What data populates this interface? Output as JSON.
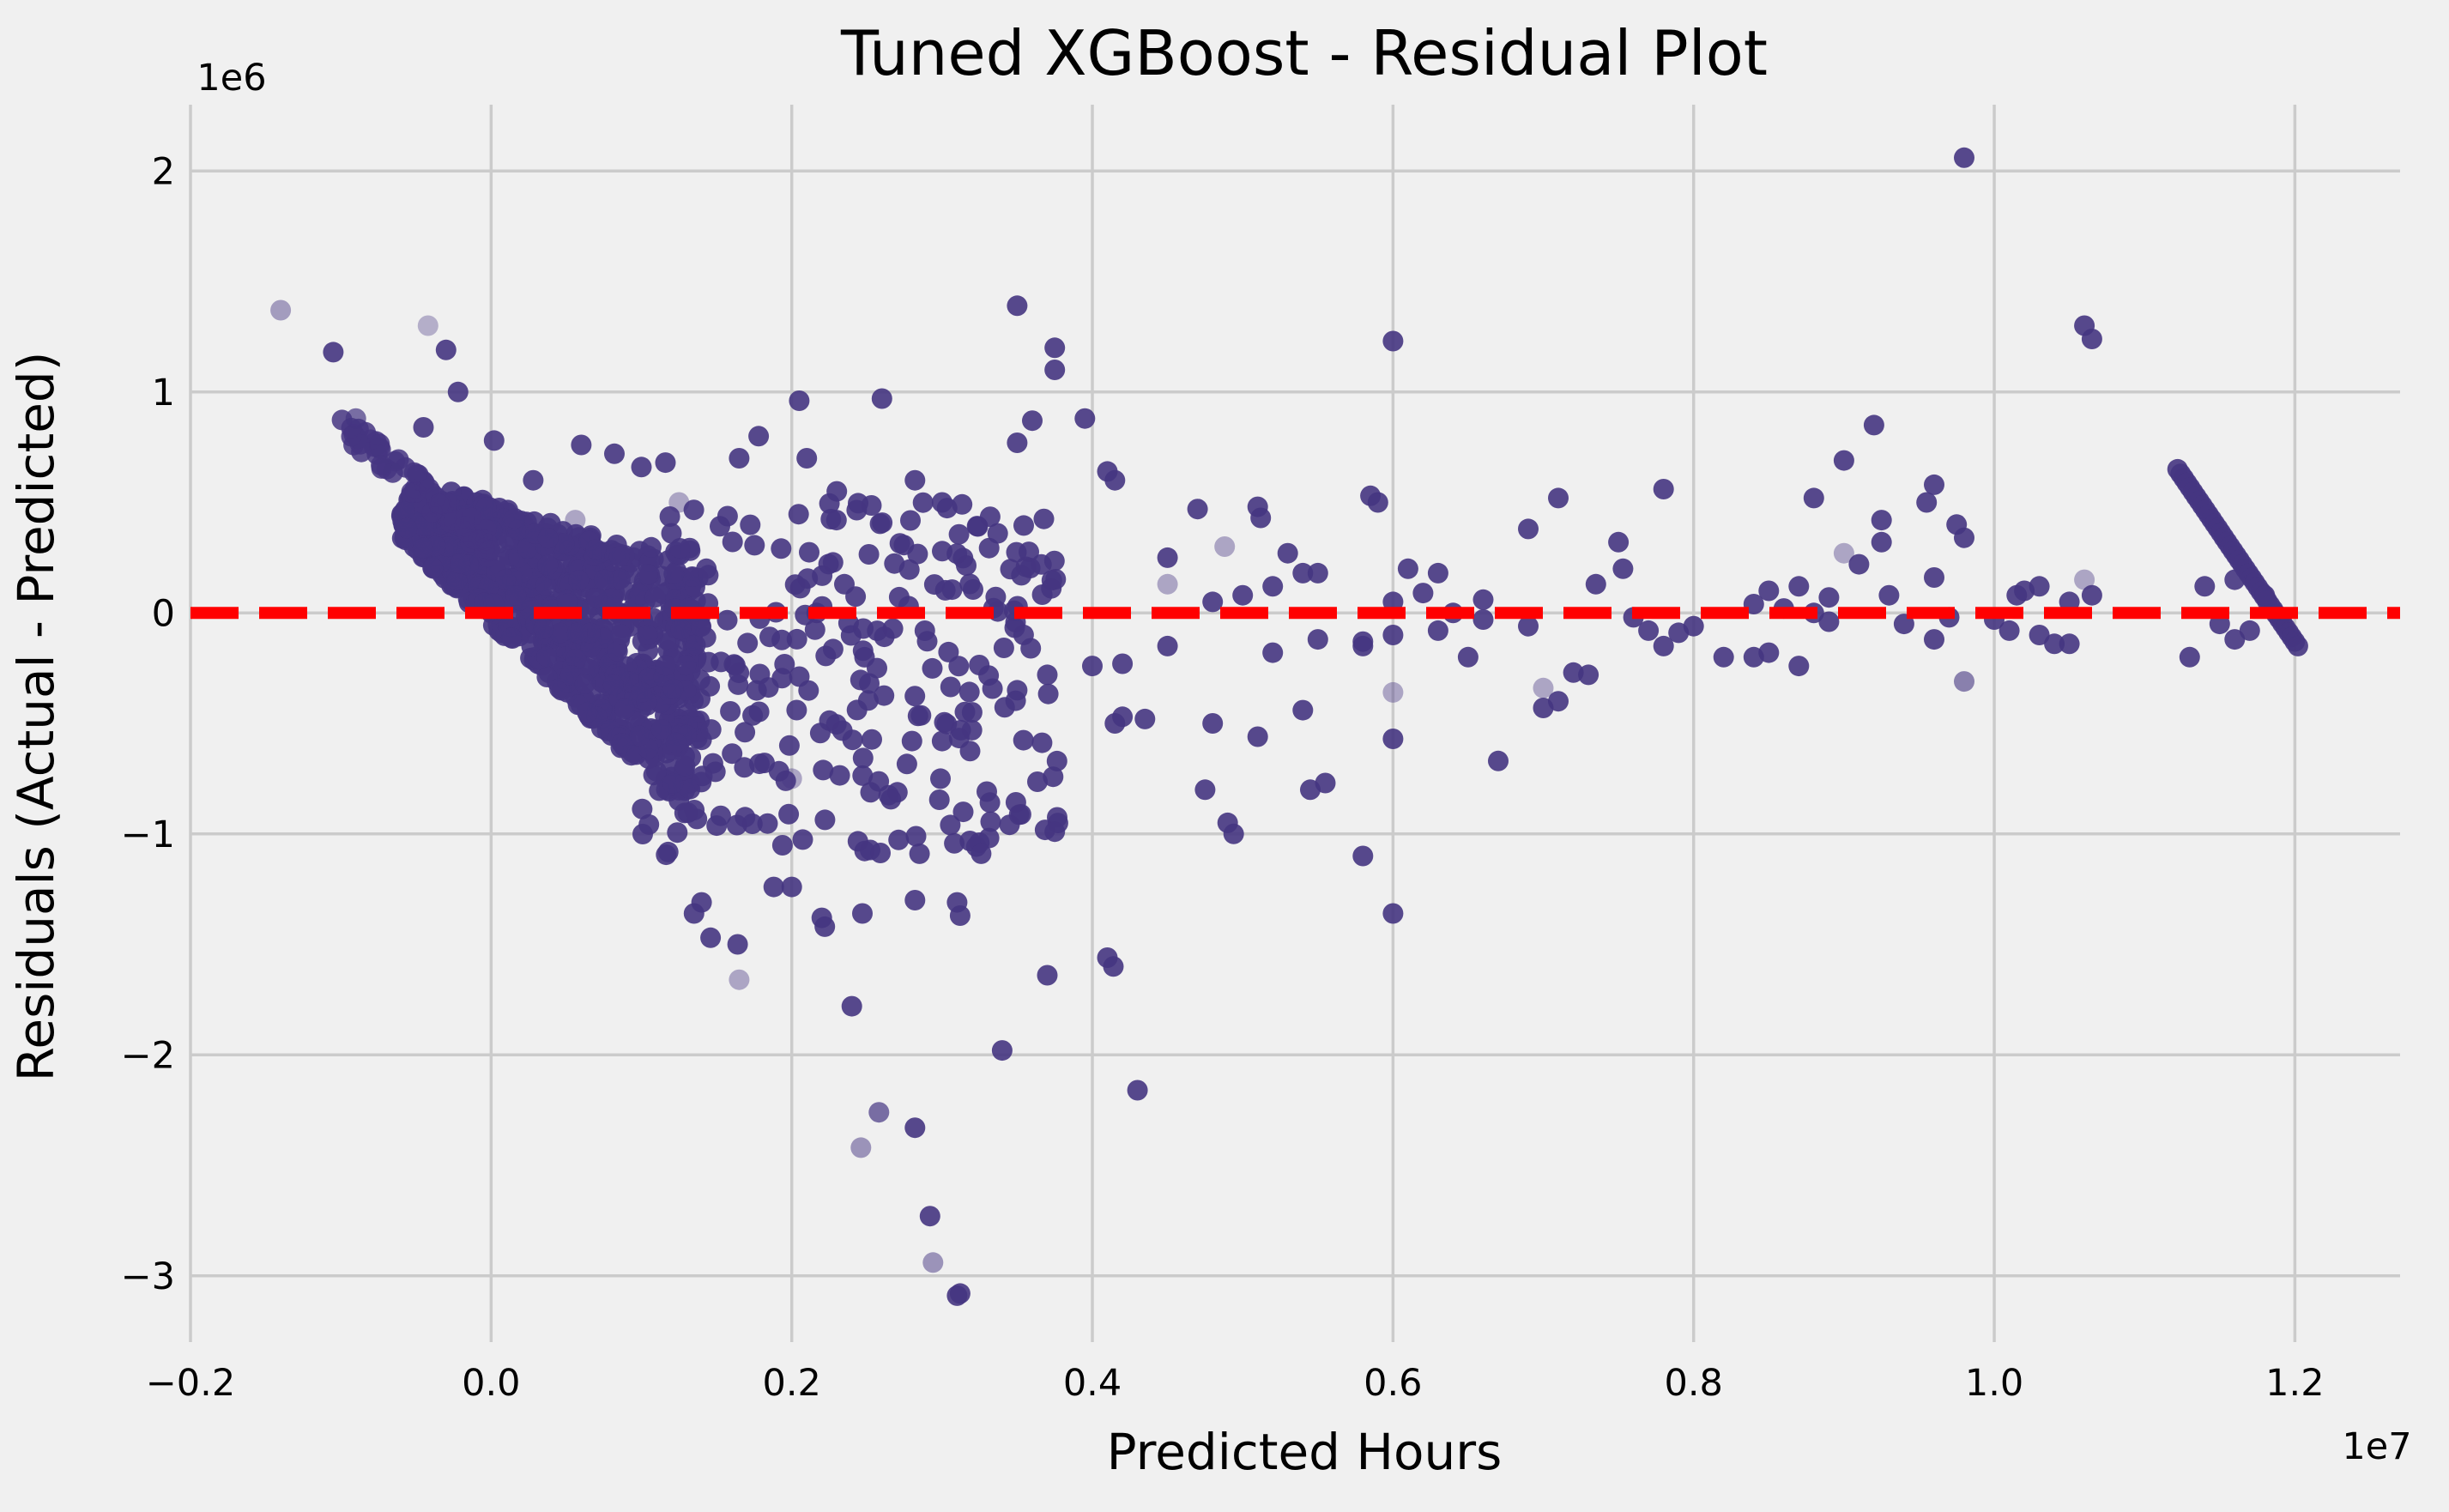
{
  "chart_data": {
    "type": "scatter",
    "title": "Tuned XGBoost - Residual Plot",
    "xlabel": "Predicted Hours",
    "ylabel": "Residuals (Actual - Predicted)",
    "x_offset_label": "1e7",
    "y_offset_label": "1e6",
    "xlim": [
      -0.2,
      1.27
    ],
    "ylim": [
      -3.3,
      2.3
    ],
    "xticks": [
      -0.2,
      0.0,
      0.2,
      0.4,
      0.6,
      0.8,
      1.0,
      1.2
    ],
    "xtick_labels": [
      "−0.2",
      "0.0",
      "0.2",
      "0.4",
      "0.6",
      "0.8",
      "1.0",
      "1.2"
    ],
    "yticks": [
      -3,
      -2,
      -1,
      0,
      1,
      2
    ],
    "ytick_labels": [
      "−3",
      "−2",
      "−1",
      "0",
      "1",
      "2"
    ],
    "grid": true,
    "reference_line": {
      "y": 0,
      "color": "#ff0000",
      "style": "dashed"
    },
    "marker_color": "#453581",
    "series": [
      {
        "points": [
          [
            -0.14,
            1.37,
            0.45
          ],
          [
            -0.105,
            1.18,
            0.9
          ],
          [
            -0.09,
            0.88,
            0.7
          ],
          [
            -0.042,
            1.3,
            0.35
          ],
          [
            -0.03,
            1.19,
            0.9
          ],
          [
            -0.022,
            1.0,
            0.9
          ],
          [
            -0.045,
            0.84,
            0.9
          ],
          [
            0.002,
            0.78,
            0.9
          ],
          [
            0.028,
            0.6,
            0.9
          ],
          [
            0.06,
            0.76,
            0.9
          ],
          [
            0.082,
            0.72,
            0.9
          ],
          [
            0.1,
            0.66,
            0.9
          ],
          [
            0.116,
            0.68,
            0.9
          ],
          [
            0.056,
            0.42,
            0.4
          ],
          [
            0.125,
            0.5,
            0.4
          ],
          [
            0.12,
            0.36,
            0.9
          ],
          [
            0.165,
            0.7,
            0.9
          ],
          [
            0.178,
            0.8,
            0.9
          ],
          [
            0.205,
            0.96,
            0.9
          ],
          [
            0.21,
            0.7,
            0.9
          ],
          [
            0.23,
            0.55,
            0.9
          ],
          [
            0.235,
            0.13,
            0.9
          ],
          [
            0.26,
            0.97,
            0.9
          ],
          [
            0.282,
            0.6,
            0.9
          ],
          [
            0.3,
            0.5,
            0.9
          ],
          [
            0.35,
            1.39,
            0.9
          ],
          [
            0.35,
            0.77,
            0.9
          ],
          [
            0.36,
            0.87,
            0.9
          ],
          [
            0.375,
            1.2,
            0.9
          ],
          [
            0.375,
            1.1,
            0.9
          ],
          [
            0.395,
            0.88,
            0.9
          ],
          [
            0.41,
            0.64,
            0.9
          ],
          [
            0.415,
            0.6,
            0.9
          ],
          [
            0.45,
            0.25,
            0.9
          ],
          [
            0.47,
            0.47,
            0.9
          ],
          [
            0.45,
            0.13,
            0.4
          ],
          [
            0.488,
            0.3,
            0.4
          ],
          [
            0.51,
            0.48,
            0.9
          ],
          [
            0.512,
            0.43,
            0.9
          ],
          [
            0.53,
            0.27,
            0.9
          ],
          [
            0.55,
            0.18,
            0.9
          ],
          [
            0.6,
            1.23,
            0.9
          ],
          [
            0.585,
            0.53,
            0.9
          ],
          [
            0.59,
            0.5,
            0.9
          ],
          [
            0.61,
            0.2,
            0.9
          ],
          [
            0.63,
            0.18,
            0.9
          ],
          [
            0.66,
            0.06,
            0.9
          ],
          [
            0.69,
            0.38,
            0.9
          ],
          [
            0.71,
            0.52,
            0.9
          ],
          [
            0.735,
            0.13,
            0.9
          ],
          [
            0.75,
            0.32,
            0.9
          ],
          [
            0.753,
            0.2,
            0.9
          ],
          [
            0.78,
            0.56,
            0.9
          ],
          [
            0.85,
            0.1,
            0.9
          ],
          [
            0.87,
            0.12,
            0.9
          ],
          [
            0.88,
            0.52,
            0.9
          ],
          [
            0.89,
            0.07,
            0.9
          ],
          [
            0.9,
            0.69,
            0.9
          ],
          [
            0.9,
            0.27,
            0.4
          ],
          [
            0.91,
            0.22,
            0.9
          ],
          [
            0.92,
            0.85,
            0.9
          ],
          [
            0.925,
            0.42,
            0.9
          ],
          [
            0.925,
            0.32,
            0.9
          ],
          [
            0.93,
            0.08,
            0.9
          ],
          [
            0.96,
            0.58,
            0.9
          ],
          [
            0.96,
            0.16,
            0.9
          ],
          [
            0.955,
            0.5,
            0.9
          ],
          [
            0.98,
            2.06,
            0.9
          ],
          [
            0.975,
            0.4,
            0.9
          ],
          [
            0.98,
            0.34,
            0.9
          ],
          [
            1.015,
            0.08,
            0.9
          ],
          [
            1.03,
            0.12,
            0.9
          ],
          [
            1.05,
            0.05,
            0.9
          ],
          [
            1.06,
            1.3,
            0.9
          ],
          [
            1.065,
            1.24,
            0.9
          ],
          [
            1.06,
            0.15,
            0.4
          ],
          [
            1.065,
            0.08,
            0.9
          ],
          [
            0.98,
            -0.31,
            0.6
          ],
          [
            0.6,
            -0.36,
            0.4
          ],
          [
            0.6,
            -0.57,
            0.9
          ],
          [
            0.6,
            -1.36,
            0.9
          ],
          [
            0.58,
            -1.1,
            0.9
          ],
          [
            0.555,
            -0.77,
            0.9
          ],
          [
            0.545,
            -0.8,
            0.9
          ],
          [
            0.49,
            -0.95,
            0.9
          ],
          [
            0.494,
            -1.0,
            0.9
          ],
          [
            0.475,
            -0.8,
            0.9
          ],
          [
            0.51,
            -0.56,
            0.9
          ],
          [
            0.48,
            -0.5,
            0.9
          ],
          [
            0.54,
            -0.44,
            0.9
          ],
          [
            0.43,
            -2.16,
            0.9
          ],
          [
            0.41,
            -1.56,
            0.9
          ],
          [
            0.414,
            -1.6,
            0.9
          ],
          [
            0.37,
            -1.64,
            0.9
          ],
          [
            0.375,
            -0.99,
            0.9
          ],
          [
            0.34,
            -1.98,
            0.9
          ],
          [
            0.31,
            -1.31,
            0.9
          ],
          [
            0.312,
            -1.37,
            0.9
          ],
          [
            0.326,
            -1.09,
            0.9
          ],
          [
            0.31,
            -3.09,
            0.9
          ],
          [
            0.312,
            -3.08,
            0.9
          ],
          [
            0.294,
            -2.94,
            0.5
          ],
          [
            0.292,
            -2.73,
            0.9
          ],
          [
            0.282,
            -2.33,
            0.9
          ],
          [
            0.282,
            -1.3,
            0.9
          ],
          [
            0.285,
            -1.09,
            0.9
          ],
          [
            0.258,
            -2.26,
            0.7
          ],
          [
            0.246,
            -2.42,
            0.5
          ],
          [
            0.24,
            -1.78,
            0.9
          ],
          [
            0.247,
            -1.36,
            0.9
          ],
          [
            0.222,
            -1.42,
            0.9
          ],
          [
            0.22,
            -1.38,
            0.9
          ],
          [
            0.2,
            -1.24,
            0.9
          ],
          [
            0.188,
            -1.24,
            0.9
          ],
          [
            0.165,
            -1.66,
            0.4
          ],
          [
            0.164,
            -1.5,
            0.9
          ],
          [
            0.146,
            -1.47,
            0.9
          ],
          [
            0.14,
            -1.31,
            0.9
          ],
          [
            0.135,
            -1.36,
            0.9
          ],
          [
            0.196,
            -0.76,
            0.9
          ],
          [
            0.2,
            -0.75,
            0.4
          ],
          [
            0.82,
            -0.2,
            0.9
          ],
          [
            0.84,
            -0.2,
            0.9
          ],
          [
            0.85,
            -0.18,
            0.9
          ],
          [
            0.87,
            -0.24,
            0.9
          ],
          [
            0.78,
            -0.15,
            0.9
          ],
          [
            0.72,
            -0.27,
            0.9
          ],
          [
            0.73,
            -0.28,
            0.9
          ],
          [
            0.7,
            -0.43,
            0.9
          ],
          [
            0.71,
            -0.4,
            0.9
          ],
          [
            0.7,
            -0.34,
            0.4
          ],
          [
            0.67,
            -0.67,
            0.9
          ],
          [
            0.58,
            -0.13,
            0.9
          ],
          [
            0.6,
            -0.1,
            0.9
          ],
          [
            0.58,
            -0.15,
            0.9
          ],
          [
            0.63,
            -0.08,
            0.9
          ],
          [
            0.65,
            -0.2,
            0.9
          ],
          [
            0.55,
            -0.12,
            0.9
          ],
          [
            0.52,
            -0.18,
            0.9
          ],
          [
            0.435,
            -0.48,
            0.9
          ],
          [
            0.45,
            -0.15,
            0.9
          ],
          [
            0.415,
            -0.5,
            0.9
          ],
          [
            0.42,
            -0.47,
            0.9
          ],
          [
            0.42,
            -0.23,
            0.9
          ],
          [
            0.4,
            -0.24,
            0.9
          ],
          [
            0.37,
            -0.28,
            0.9
          ],
          [
            0.35,
            -0.35,
            0.9
          ],
          [
            0.32,
            -0.45,
            0.9
          ],
          [
            0.3,
            -0.58,
            0.9
          ],
          [
            0.28,
            -0.58,
            0.9
          ],
          [
            0.96,
            -0.12,
            0.9
          ],
          [
            0.97,
            -0.02,
            0.9
          ],
          [
            0.94,
            -0.05,
            0.9
          ],
          [
            1.0,
            -0.03,
            0.9
          ],
          [
            1.01,
            -0.08,
            0.9
          ],
          [
            1.03,
            -0.1,
            0.9
          ],
          [
            1.04,
            -0.14,
            0.9
          ],
          [
            1.05,
            -0.14,
            0.9
          ],
          [
            1.13,
            -0.2,
            0.9
          ],
          [
            1.15,
            -0.05,
            0.9
          ],
          [
            1.16,
            -0.12,
            0.9
          ],
          [
            1.17,
            -0.08,
            0.9
          ],
          [
            1.18,
            0.08,
            0.9
          ],
          [
            1.14,
            0.12,
            0.9
          ],
          [
            1.16,
            0.15,
            0.9
          ],
          [
            1.02,
            0.1,
            0.9
          ],
          [
            0.54,
            0.18,
            0.9
          ],
          [
            0.52,
            0.12,
            0.9
          ],
          [
            0.5,
            0.08,
            0.9
          ],
          [
            0.48,
            0.05,
            0.9
          ],
          [
            0.6,
            0.05,
            0.9
          ],
          [
            0.62,
            0.09,
            0.9
          ],
          [
            0.64,
            0.0,
            0.9
          ],
          [
            0.66,
            -0.03,
            0.9
          ],
          [
            0.69,
            -0.06,
            0.9
          ],
          [
            0.76,
            -0.02,
            0.9
          ],
          [
            0.77,
            -0.08,
            0.9
          ],
          [
            0.79,
            -0.09,
            0.9
          ],
          [
            0.8,
            -0.06,
            0.9
          ],
          [
            0.84,
            0.04,
            0.9
          ],
          [
            0.86,
            0.02,
            0.9
          ],
          [
            0.88,
            0.0,
            0.9
          ],
          [
            0.89,
            -0.04,
            0.9
          ]
        ]
      }
    ]
  }
}
